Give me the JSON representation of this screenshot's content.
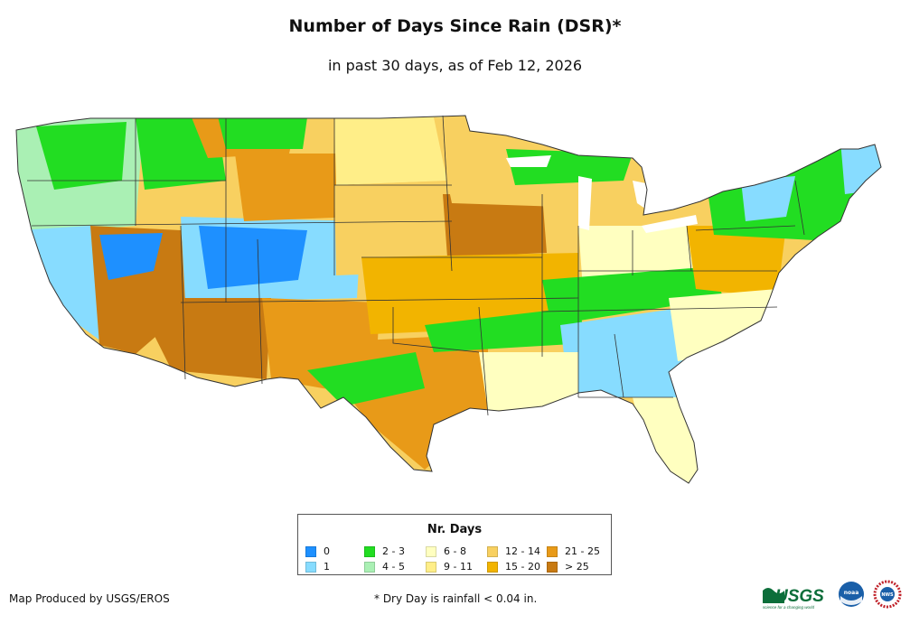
{
  "title": "Number of Days Since Rain (DSR)*",
  "subtitle": "in past 30 days, as of Feb 12, 2026",
  "legend": {
    "title": "Nr. Days",
    "items": [
      {
        "label": "0",
        "color": "#1e90ff"
      },
      {
        "label": "1",
        "color": "#87dcff"
      },
      {
        "label": "2 - 3",
        "color": "#22dd22"
      },
      {
        "label": "4 - 5",
        "color": "#aaf0b4"
      },
      {
        "label": "6 - 8",
        "color": "#ffffc0"
      },
      {
        "label": "9 - 11",
        "color": "#ffee88"
      },
      {
        "label": "12 - 14",
        "color": "#f8d060"
      },
      {
        "label": "15 - 20",
        "color": "#f2b400"
      },
      {
        "label": "21 - 25",
        "color": "#e89a18"
      },
      {
        "label": "> 25",
        "color": "#c87a12"
      }
    ]
  },
  "footer": {
    "credit": "Map Produced by USGS/EROS",
    "footnote": "* Dry Day is rainfall < 0.04 in."
  },
  "logos": {
    "usgs": {
      "name": "USGS",
      "tagline": "science for a changing world",
      "color": "#0c6e3a"
    },
    "noaa": {
      "name": "noaa",
      "color": "#1a5fa8"
    },
    "nws": {
      "name": "NWS",
      "color": "#c0222a"
    }
  }
}
